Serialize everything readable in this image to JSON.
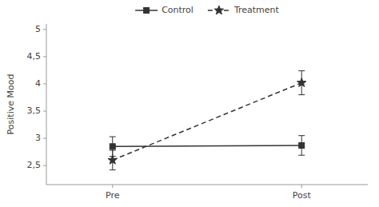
{
  "chart_data": {
    "type": "line",
    "x": [
      1,
      2
    ],
    "xlim": [
      0.65,
      2.35
    ],
    "xticks": [
      {
        "value": 1,
        "label": "Pre"
      },
      {
        "value": 2,
        "label": "Post"
      }
    ],
    "ylim": [
      2.15,
      5.1
    ],
    "yticks": [
      {
        "value": 2.5,
        "label": "2,5"
      },
      3,
      {
        "value": 3.5,
        "label": "3,5"
      },
      4,
      {
        "value": 4.5,
        "label": "4,5"
      },
      5
    ],
    "y_label": "Positive Mood",
    "grid": false,
    "legend": "top",
    "series": [
      {
        "name": "Control",
        "color": "#333333",
        "marker": "square",
        "line_style": "solid",
        "values": [
          2.85,
          2.87
        ],
        "errors": [
          0.18,
          0.18
        ]
      },
      {
        "name": "Treatment",
        "color": "#333333",
        "marker": "star",
        "line_style": "dashed",
        "values": [
          2.6,
          4.02
        ],
        "errors": [
          0.18,
          0.22
        ]
      }
    ]
  }
}
